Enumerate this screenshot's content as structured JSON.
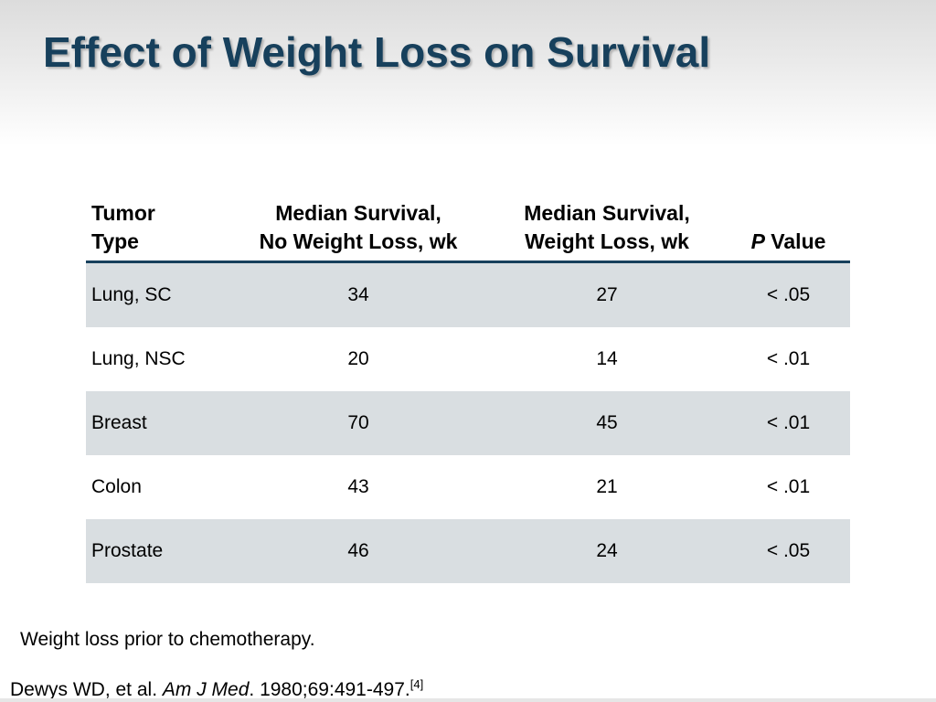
{
  "slide": {
    "title": "Effect of Weight Loss on Survival"
  },
  "table": {
    "headers": {
      "type_line1": "Tumor",
      "type_line2": "Type",
      "nwl_line1": "Median Survival,",
      "nwl_line2": "No Weight Loss, wk",
      "wl_line1": "Median Survival,",
      "wl_line2": "Weight Loss, wk",
      "p_italic": "P",
      "p_rest": " Value"
    },
    "rows": [
      {
        "type": "Lung, SC",
        "no_weight_loss": "34",
        "weight_loss": "27",
        "p_value": "< .05"
      },
      {
        "type": "Lung, NSC",
        "no_weight_loss": "20",
        "weight_loss": "14",
        "p_value": "< .01"
      },
      {
        "type": "Breast",
        "no_weight_loss": "70",
        "weight_loss": "45",
        "p_value": "< .01"
      },
      {
        "type": "Colon",
        "no_weight_loss": "43",
        "weight_loss": "21",
        "p_value": "< .01"
      },
      {
        "type": "Prostate",
        "no_weight_loss": "46",
        "weight_loss": "24",
        "p_value": "< .05"
      }
    ],
    "shaded_row_color": "#d9dee1",
    "rule_color": "#17405c"
  },
  "footnote": "Weight loss prior to chemotherapy.",
  "citation": {
    "authors": "Dewys WD, et al. ",
    "journal": "Am J Med",
    "details": ". 1980;69:491-497.",
    "ref": "[4]"
  },
  "colors": {
    "title": "#17405c",
    "header_band": "#dcdcdc"
  }
}
